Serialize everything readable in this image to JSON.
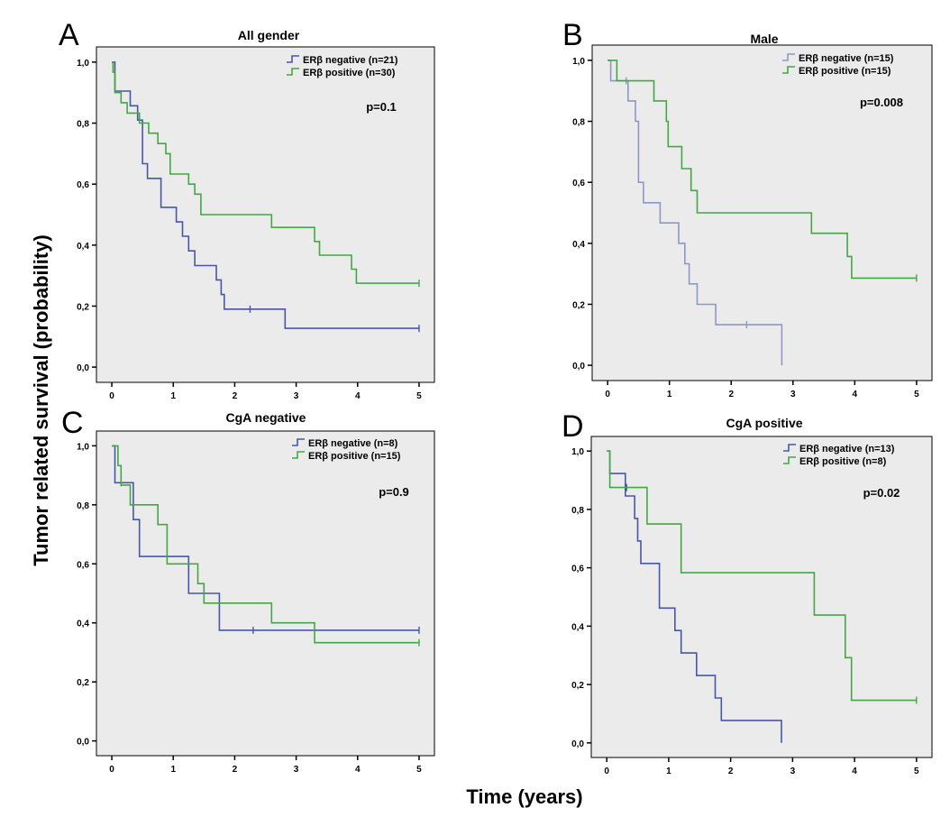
{
  "figure": {
    "ylabel": "Tumor related survival (probability)",
    "xlabel": "Time (years)"
  },
  "colors": {
    "negative": "#4857a5",
    "negative_light": "#8e97c8",
    "positive": "#43a843"
  },
  "chart_data": [
    {
      "type": "line",
      "letter": "A",
      "title": "All gender",
      "p_value": "p=0.1",
      "xlim": [
        -0.25,
        5.25
      ],
      "ylim": [
        -0.05,
        1.05
      ],
      "x_ticks": [
        "0",
        "1",
        "2",
        "3",
        "4",
        "5"
      ],
      "y_ticks": [
        "0,0",
        "0,2",
        "0,4",
        "0,6",
        "0,8",
        "1,0"
      ],
      "legend": [
        "ERβ negative (n=21)",
        "ERβ positive  (n=30)"
      ],
      "series": [
        {
          "name": "ERβ negative (n=21)",
          "color": "#4857a5",
          "steps": [
            [
              0,
              1.0
            ],
            [
              0.05,
              0.905
            ],
            [
              0.3,
              0.857
            ],
            [
              0.42,
              0.81
            ],
            [
              0.5,
              0.667
            ],
            [
              0.58,
              0.619
            ],
            [
              0.8,
              0.524
            ],
            [
              1.05,
              0.476
            ],
            [
              1.15,
              0.429
            ],
            [
              1.25,
              0.381
            ],
            [
              1.35,
              0.333
            ],
            [
              1.7,
              0.286
            ],
            [
              1.78,
              0.238
            ],
            [
              1.83,
              0.19
            ],
            [
              2.82,
              0.127
            ],
            [
              5.0,
              0.127
            ]
          ],
          "censor": [
            [
              2.25,
              0.19
            ],
            [
              5.0,
              0.127
            ]
          ]
        },
        {
          "name": "ERβ positive  (n=30)",
          "color": "#43a843",
          "steps": [
            [
              0,
              1.0
            ],
            [
              0.02,
              0.967
            ],
            [
              0.05,
              0.9
            ],
            [
              0.15,
              0.867
            ],
            [
              0.25,
              0.833
            ],
            [
              0.45,
              0.8
            ],
            [
              0.6,
              0.767
            ],
            [
              0.75,
              0.733
            ],
            [
              0.88,
              0.7
            ],
            [
              0.95,
              0.633
            ],
            [
              1.25,
              0.6
            ],
            [
              1.35,
              0.567
            ],
            [
              1.45,
              0.5
            ],
            [
              2.6,
              0.458
            ],
            [
              3.3,
              0.412
            ],
            [
              3.38,
              0.367
            ],
            [
              3.9,
              0.321
            ],
            [
              3.98,
              0.275
            ],
            [
              5.0,
              0.275
            ]
          ],
          "censor": [
            [
              5.0,
              0.275
            ]
          ]
        }
      ]
    },
    {
      "type": "line",
      "letter": "B",
      "title": "Male",
      "p_value": "p=0.008",
      "xlim": [
        -0.25,
        5.25
      ],
      "ylim": [
        -0.05,
        1.05
      ],
      "x_ticks": [
        "0",
        "1",
        "2",
        "3",
        "4",
        "5"
      ],
      "y_ticks": [
        "0,0",
        "0,2",
        "0,4",
        "0,6",
        "0,8",
        "1,0"
      ],
      "legend": [
        "ERβ negative (n=15)",
        "ERβ positive  (n=15)"
      ],
      "series": [
        {
          "name": "ERβ negative (n=15)",
          "color": "#8e97c8",
          "steps": [
            [
              0,
              1.0
            ],
            [
              0.05,
              0.933
            ],
            [
              0.33,
              0.867
            ],
            [
              0.45,
              0.8
            ],
            [
              0.5,
              0.6
            ],
            [
              0.58,
              0.533
            ],
            [
              0.85,
              0.467
            ],
            [
              1.15,
              0.4
            ],
            [
              1.25,
              0.333
            ],
            [
              1.32,
              0.267
            ],
            [
              1.45,
              0.2
            ],
            [
              1.75,
              0.133
            ],
            [
              2.82,
              0.0
            ]
          ],
          "censor": [
            [
              0.3,
              0.933
            ],
            [
              2.25,
              0.133
            ]
          ]
        },
        {
          "name": "ERβ positive  (n=15)",
          "color": "#43a843",
          "steps": [
            [
              0,
              1.0
            ],
            [
              0.15,
              0.933
            ],
            [
              0.75,
              0.867
            ],
            [
              0.95,
              0.8
            ],
            [
              0.98,
              0.717
            ],
            [
              1.2,
              0.645
            ],
            [
              1.35,
              0.573
            ],
            [
              1.45,
              0.5
            ],
            [
              3.3,
              0.433
            ],
            [
              3.88,
              0.357
            ],
            [
              3.95,
              0.286
            ],
            [
              5.0,
              0.286
            ]
          ],
          "censor": [
            [
              5.0,
              0.286
            ]
          ]
        }
      ]
    },
    {
      "type": "line",
      "letter": "C",
      "title": "CgA negative",
      "p_value": "p=0.9",
      "xlim": [
        -0.25,
        5.25
      ],
      "ylim": [
        -0.05,
        1.05
      ],
      "x_ticks": [
        "0",
        "1",
        "2",
        "3",
        "4",
        "5"
      ],
      "y_ticks": [
        "0,0",
        "0,2",
        "0,4",
        "0,6",
        "0,8",
        "1,0"
      ],
      "legend": [
        "ERβ negative (n=8)",
        "ERβ positive  (n=15)"
      ],
      "series": [
        {
          "name": "ERβ negative (n=8)",
          "color": "#4857a5",
          "steps": [
            [
              0,
              1.0
            ],
            [
              0.05,
              0.875
            ],
            [
              0.35,
              0.75
            ],
            [
              0.45,
              0.625
            ],
            [
              1.25,
              0.5
            ],
            [
              1.75,
              0.375
            ],
            [
              5.0,
              0.375
            ]
          ],
          "censor": [
            [
              0.15,
              0.875
            ],
            [
              2.3,
              0.375
            ],
            [
              5.0,
              0.375
            ]
          ]
        },
        {
          "name": "ERβ positive  (n=15)",
          "color": "#43a843",
          "steps": [
            [
              0,
              1.0
            ],
            [
              0.1,
              0.933
            ],
            [
              0.15,
              0.867
            ],
            [
              0.3,
              0.8
            ],
            [
              0.75,
              0.733
            ],
            [
              0.9,
              0.6
            ],
            [
              1.4,
              0.533
            ],
            [
              1.5,
              0.467
            ],
            [
              2.6,
              0.4
            ],
            [
              3.3,
              0.333
            ],
            [
              5.0,
              0.333
            ]
          ],
          "censor": [
            [
              5.0,
              0.333
            ]
          ]
        }
      ]
    },
    {
      "type": "line",
      "letter": "D",
      "title": "CgA positive",
      "p_value": "p=0.02",
      "xlim": [
        -0.25,
        5.25
      ],
      "ylim": [
        -0.05,
        1.05
      ],
      "x_ticks": [
        "0",
        "1",
        "2",
        "3",
        "4",
        "5"
      ],
      "y_ticks": [
        "0,0",
        "0,2",
        "0,4",
        "0,6",
        "0,8",
        "1,0"
      ],
      "legend": [
        "ERβ negative (n=13)",
        "ERβ positive  (n=8)"
      ],
      "series": [
        {
          "name": "ERβ negative (n=13)",
          "color": "#4857a5",
          "steps": [
            [
              0,
              1.0
            ],
            [
              0.05,
              0.923
            ],
            [
              0.3,
              0.846
            ],
            [
              0.45,
              0.769
            ],
            [
              0.5,
              0.692
            ],
            [
              0.55,
              0.615
            ],
            [
              0.85,
              0.462
            ],
            [
              1.1,
              0.385
            ],
            [
              1.2,
              0.308
            ],
            [
              1.45,
              0.231
            ],
            [
              1.75,
              0.154
            ],
            [
              1.85,
              0.077
            ],
            [
              2.82,
              0.0
            ]
          ],
          "censor": [
            [
              0.32,
              0.875
            ]
          ]
        },
        {
          "name": "ERβ positive  (n=8)",
          "color": "#43a843",
          "steps": [
            [
              0,
              1.0
            ],
            [
              0.05,
              0.875
            ],
            [
              0.65,
              0.75
            ],
            [
              1.2,
              0.583
            ],
            [
              3.35,
              0.438
            ],
            [
              3.85,
              0.292
            ],
            [
              3.95,
              0.146
            ],
            [
              5.0,
              0.146
            ]
          ],
          "censor": [
            [
              5.0,
              0.146
            ]
          ]
        }
      ]
    }
  ]
}
